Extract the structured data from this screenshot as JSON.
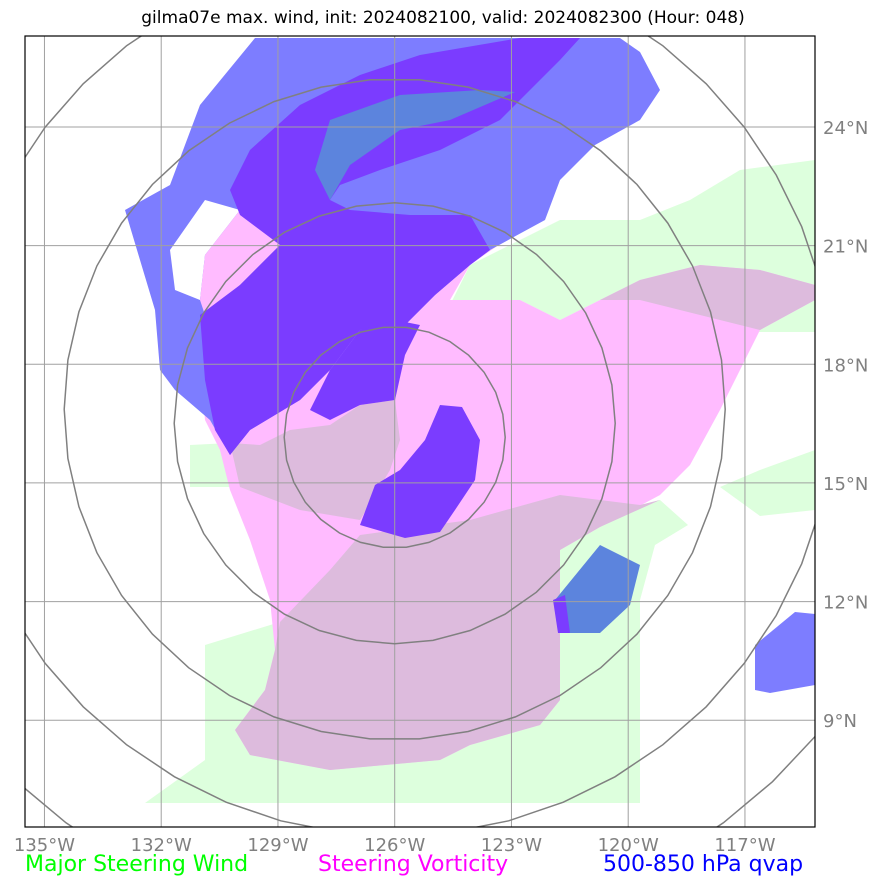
{
  "title": "gilma07e max. wind, init: 2024082100, valid: 2024082300 (Hour: 048)",
  "map": {
    "lon_range": [
      -135.5,
      -115.2
    ],
    "lat_range": [
      6.3,
      26.3
    ],
    "lon_ticks": [
      {
        "value": -135,
        "label": "135°W"
      },
      {
        "value": -132,
        "label": "132°W"
      },
      {
        "value": -129,
        "label": "129°W"
      },
      {
        "value": -126,
        "label": "126°W"
      },
      {
        "value": -123,
        "label": "123°W"
      },
      {
        "value": -120,
        "label": "120°W"
      },
      {
        "value": -117,
        "label": "117°W"
      }
    ],
    "lat_ticks": [
      {
        "value": 9,
        "label": "9°N"
      },
      {
        "value": 12,
        "label": "12°N"
      },
      {
        "value": 15,
        "label": "15°N"
      },
      {
        "value": 18,
        "label": "18°N"
      },
      {
        "value": 21,
        "label": "21°N"
      },
      {
        "value": 24,
        "label": "24°N"
      }
    ],
    "grid": true,
    "range_rings": {
      "center": {
        "lon": -126.0,
        "lat": 15.8
      },
      "count": 5,
      "color": "#808080"
    }
  },
  "legend": [
    {
      "label": "Major Steering Wind",
      "color": "#00ff00"
    },
    {
      "label": "Steering Vorticity",
      "color": "#ff00ff"
    },
    {
      "label": "500-850 hPa qvap",
      "color": "#0000ff"
    }
  ],
  "layer_colors": {
    "wind": "#ddffdd",
    "vorticity": "#ffbbff",
    "overlap_wind_vort": "#ddbbdd",
    "qvap": "#7d7dff",
    "qvap_on_vort": "#7b3cff",
    "qvap_on_wind": "#5c84dd"
  }
}
